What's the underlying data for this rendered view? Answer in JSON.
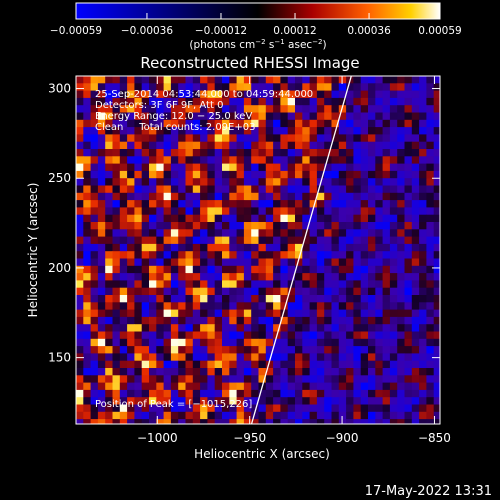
{
  "chart_data": {
    "type": "heatmap",
    "title": "Reconstructed RHESSI Image",
    "xlabel": "Heliocentric X (arcsec)",
    "ylabel": "Heliocentric Y (arcsec)",
    "x_range": [
      -1044,
      -847
    ],
    "y_range": [
      113,
      307
    ],
    "x_ticks": [
      -1000,
      -950,
      -900,
      -850
    ],
    "y_ticks": [
      150,
      200,
      250,
      300
    ],
    "x_tick_labels": [
      "−1000",
      "−950",
      "−900",
      "−850"
    ],
    "y_tick_labels": [
      "150",
      "200",
      "250",
      "300"
    ],
    "colorbar": {
      "min": -0.00059,
      "max": 0.00059,
      "ticks": [
        -0.00059,
        -0.00036,
        -0.00012,
        0.00012,
        0.00036,
        0.00059
      ],
      "tick_labels": [
        "−0.00059",
        "−0.00036",
        "−0.00012",
        "0.00012",
        "0.00036",
        "0.00059"
      ],
      "unit_main": "(photons cm",
      "unit_exp1": "−2",
      "unit_mid1": " s",
      "unit_exp2": "−1",
      "unit_mid2": " asec",
      "unit_exp3": "−2",
      "unit_end": ")"
    },
    "info_lines": [
      "25-Sep-2014 04:53:44.000 to 04:59:44.000",
      "Detectors: 3F 6F 9F, Att 0",
      "Energy Range: 12.0 − 25.0 keV",
      "Clean     Total counts: 2.09E+03"
    ],
    "peak_label": "Position of Peak = [−1015,226]",
    "limb_line": {
      "x": [
        -949,
        -895
      ],
      "y": [
        113,
        307
      ]
    },
    "grid": false
  },
  "footer": {
    "timestamp": "17-May-2022 13:31"
  }
}
